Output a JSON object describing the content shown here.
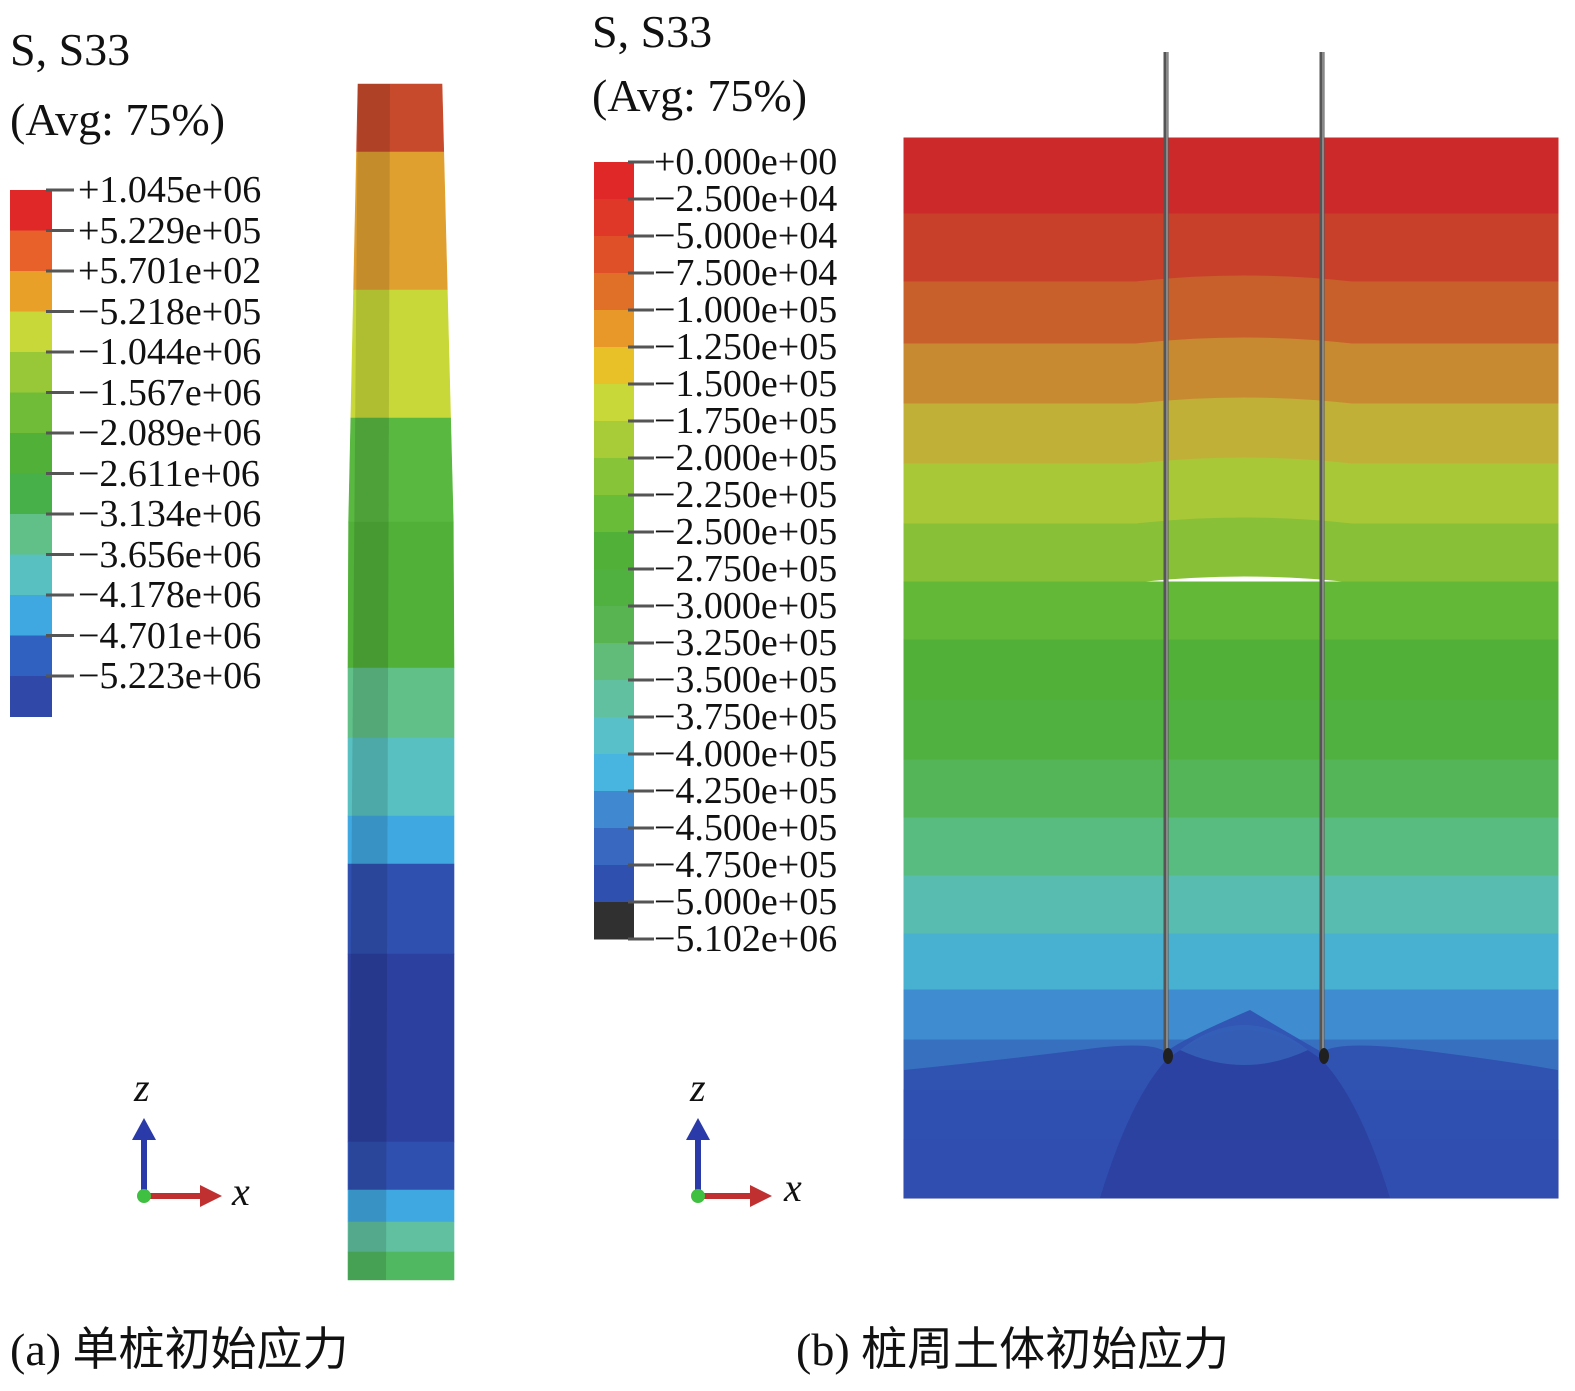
{
  "panel_a": {
    "title_line1": "S, S33",
    "title_line2": "(Avg: 75%)",
    "legend_labels": [
      "+1.045e+06",
      "+5.229e+05",
      "+5.701e+02",
      "−5.218e+05",
      "−1.044e+06",
      "−1.567e+06",
      "−2.089e+06",
      "−2.611e+06",
      "−3.134e+06",
      "−3.656e+06",
      "−4.178e+06",
      "−4.701e+06",
      "−5.223e+06"
    ],
    "legend_colors": [
      "#e02828",
      "#e8602a",
      "#e8a028",
      "#c8d838",
      "#98c838",
      "#70bc38",
      "#50b038",
      "#48b048",
      "#60c088",
      "#58c0c0",
      "#40a8e0",
      "#3060c0",
      "#3048a8"
    ],
    "pile_colors": [
      "#c84a2c",
      "#e0a030",
      "#c8d838",
      "#58b840",
      "#50b038",
      "#60c088",
      "#58c0c0",
      "#40a8e0",
      "#3050b0",
      "#2c40a0",
      "#3050b0",
      "#40a8e0",
      "#60c0a0",
      "#50b860"
    ],
    "axis_z": "z",
    "axis_x": "x",
    "caption": "(a) 单桩初始应力"
  },
  "panel_b": {
    "title_line1": "S, S33",
    "title_line2": "(Avg: 75%)",
    "legend_labels": [
      "+0.000e+00",
      "−2.500e+04",
      "−5.000e+04",
      "−7.500e+04",
      "−1.000e+05",
      "−1.250e+05",
      "−1.500e+05",
      "−1.750e+05",
      "−2.000e+05",
      "−2.250e+05",
      "−2.500e+05",
      "−2.750e+05",
      "−3.000e+05",
      "−3.250e+05",
      "−3.500e+05",
      "−3.750e+05",
      "−4.000e+05",
      "−4.250e+05",
      "−4.500e+05",
      "−4.750e+05",
      "−5.000e+05",
      "−5.102e+06"
    ],
    "legend_colors": [
      "#e02828",
      "#e03828",
      "#e05028",
      "#e07028",
      "#e89828",
      "#e8c028",
      "#c8d838",
      "#a8cc38",
      "#88c438",
      "#68bc38",
      "#50b038",
      "#50b040",
      "#58b450",
      "#60bc78",
      "#60c0a0",
      "#58c0c8",
      "#48b4e0",
      "#4088d0",
      "#3868c0",
      "#3050b0",
      "#303030"
    ],
    "soil_colors": [
      "#cc2a2a",
      "#c8402a",
      "#c8602c",
      "#c88a30",
      "#c0b038",
      "#a8c838",
      "#88c038",
      "#64b838",
      "#50b038",
      "#50b040",
      "#54b458",
      "#58bc80",
      "#58bcb0",
      "#48b0d0",
      "#3f8cd0",
      "#3870c0",
      "#3050b0",
      "#2c40a0"
    ],
    "axis_z": "z",
    "axis_x": "x",
    "caption": "(b) 桩周土体初始应力"
  }
}
